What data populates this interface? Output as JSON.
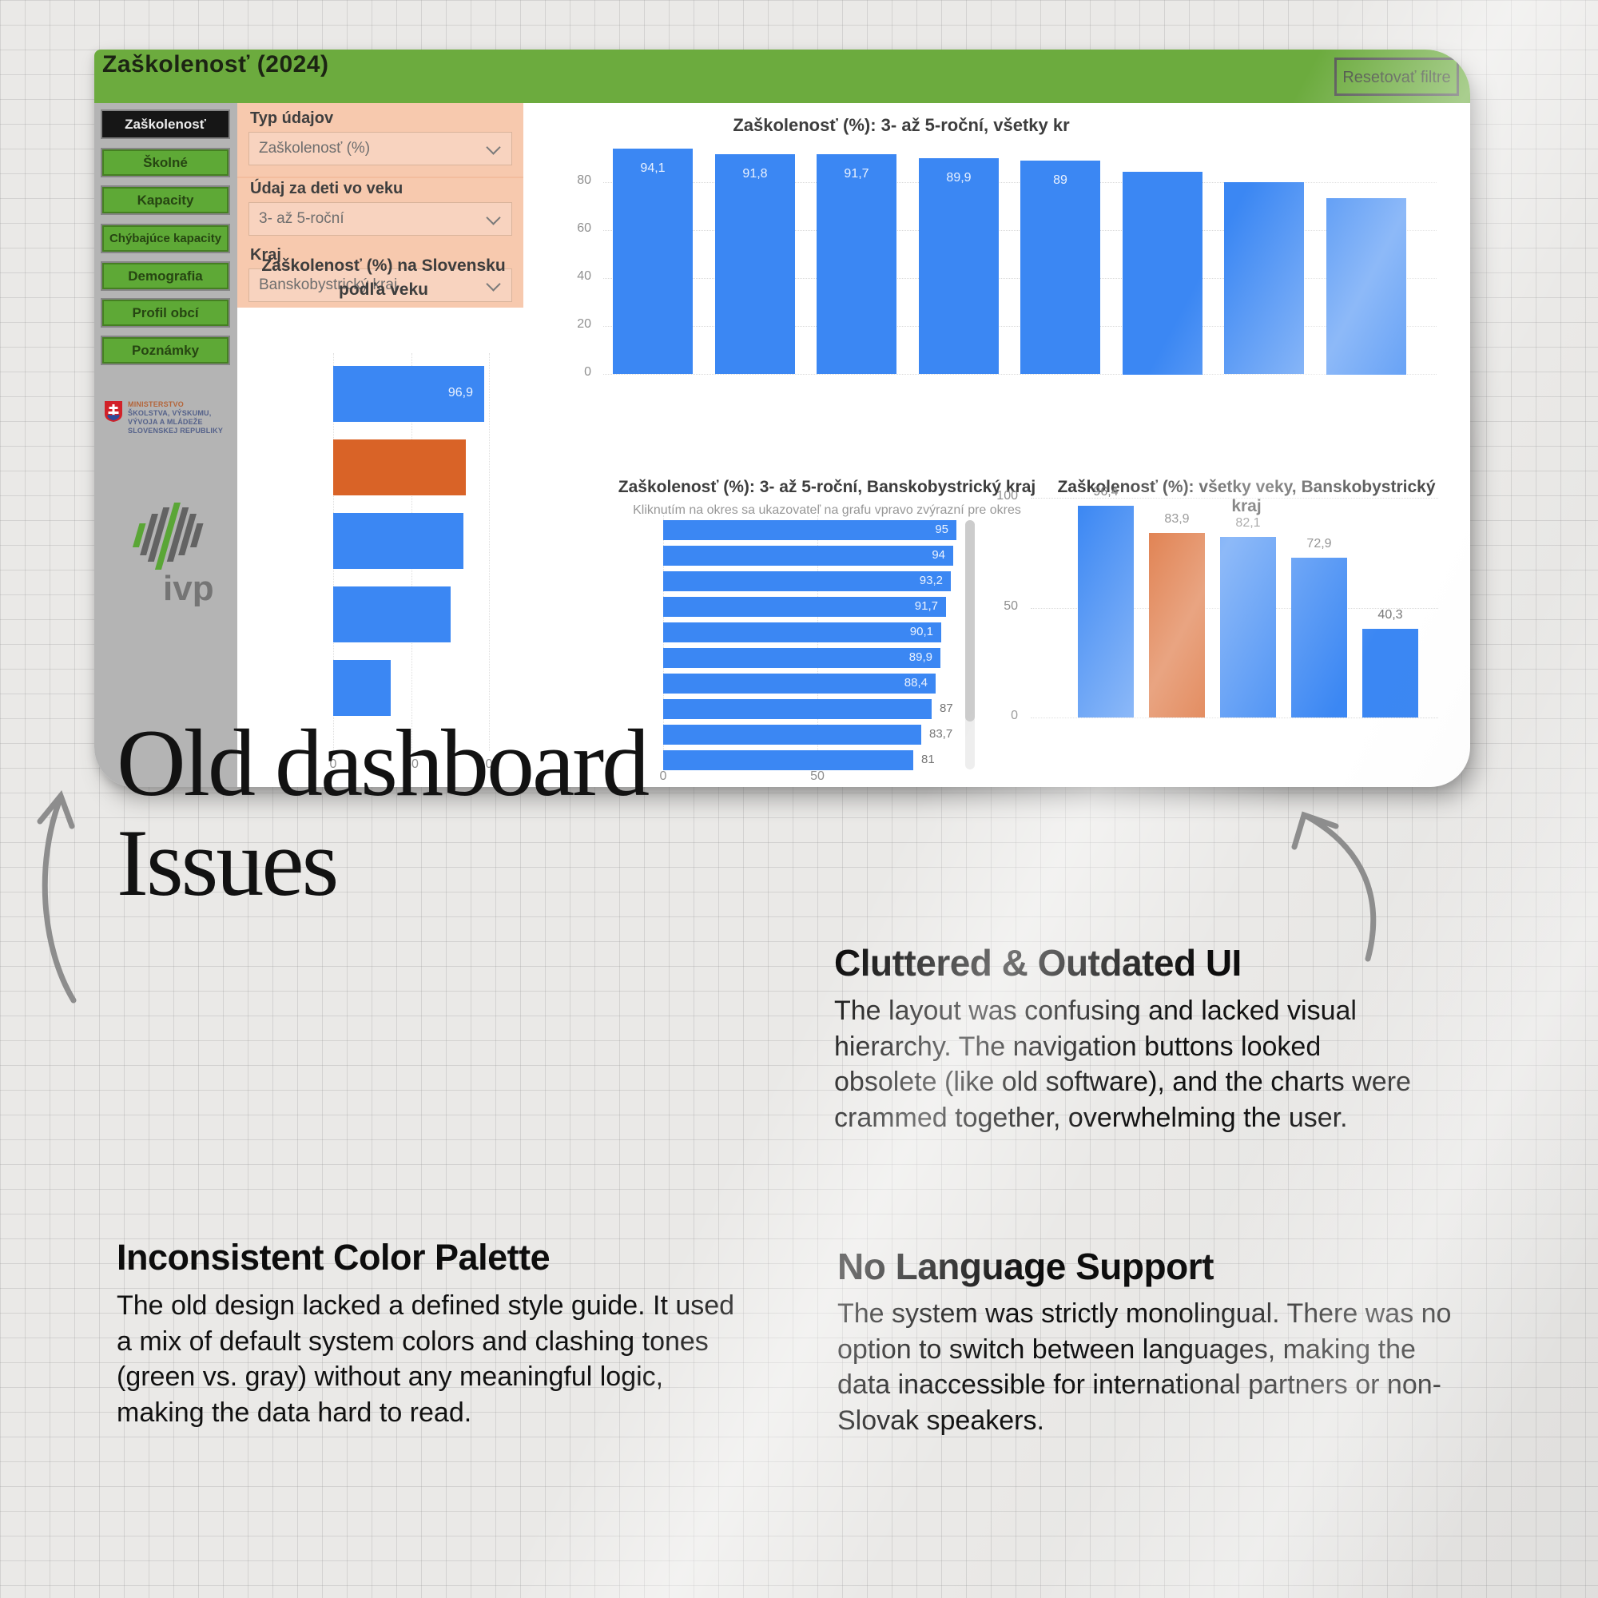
{
  "page": {
    "title_line1": "Old dashboard",
    "title_line2": "Issues",
    "sections": [
      {
        "heading": "Cluttered & Outdated UI",
        "body": "The layout was confusing and lacked visual hierarchy. The navigation buttons looked obsolete (like old software), and the charts were crammed together, overwhelming the user."
      },
      {
        "heading": "Inconsistent Color Palette",
        "body": "The old design lacked a defined style guide. It used a mix of default system colors and clashing tones (green vs. gray) without any meaningful logic, making the data hard to read."
      },
      {
        "heading": "No Language Support",
        "body": "The system was strictly monolingual. There was no option to switch between languages, making the data inaccessible for international partners or non-Slovak speakers."
      }
    ]
  },
  "dashboard": {
    "window_title": "Zaškolenosť (2024)",
    "reset_button_label": "Resetovať filtre",
    "sidebar": {
      "items": [
        {
          "label": "Zaškolenosť",
          "selected": true
        },
        {
          "label": "Školné",
          "selected": false
        },
        {
          "label": "Kapacity",
          "selected": false
        },
        {
          "label": "Chýbajúce kapacity",
          "selected": false
        },
        {
          "label": "Demografia",
          "selected": false
        },
        {
          "label": "Profil obcí",
          "selected": false
        },
        {
          "label": "Poznámky",
          "selected": false
        }
      ],
      "ministry_logo_lines": [
        "MINISTERSTVO",
        "ŠKOLSTVA, VÝSKUMU,",
        "VÝVOJA A MLÁDEŽE",
        "SLOVENSKEJ REPUBLIKY"
      ],
      "ivp_logo_label": "ivp"
    },
    "filters": [
      {
        "label": "Typ údajov",
        "value": "Zaškolenosť (%)"
      },
      {
        "label": "Údaj za deti vo veku",
        "value": "3- až 5-roční"
      },
      {
        "label": "Kraj",
        "value": "Banskobystrický kraj"
      }
    ],
    "colors": {
      "header_green": "#6cab3e",
      "nav_green": "#5ea936",
      "filter_salmon": "#f7c9ae",
      "sidebar_gray": "#b4b4b4",
      "bar_blue": "#3b87f3",
      "bar_orange": "#d96327"
    }
  },
  "chart_data": [
    {
      "type": "bar",
      "title": "Zaškolenosť (%): 3- až 5-roční, všetky kr",
      "values": [
        94.1,
        91.8,
        91.7,
        89.9,
        89,
        84.5,
        80.1,
        73.5
      ],
      "bar_labels": [
        "94,1",
        "91,8",
        "91,7",
        "89,9",
        "89",
        "",
        "",
        ""
      ],
      "yticks": [
        0,
        20,
        40,
        60,
        80
      ],
      "ylim": [
        0,
        100
      ],
      "grid": true,
      "legend": "none",
      "bar_color": "#3b87f3"
    },
    {
      "type": "bar-horizontal",
      "title": "Zaškolenosť (%) na Slovensku podľa veku",
      "values": [
        96.9,
        85,
        83.5,
        75.5,
        37
      ],
      "bar_labels": [
        "96,9",
        "",
        "",
        "",
        ""
      ],
      "bar_colors": [
        "#3b87f3",
        "#d96327",
        "#3b87f3",
        "#3b87f3",
        "#3b87f3"
      ],
      "xticks": [
        0,
        50,
        100
      ],
      "xlim": [
        0,
        130
      ],
      "grid": true,
      "legend": "none"
    },
    {
      "type": "bar-horizontal",
      "title": "Zaškolenosť (%): 3- až 5-roční, Banskobystrický kraj",
      "subtitle": "Kliknutím na okres sa ukazovateľ na grafu vpravo zvýrazní pre okres",
      "values": [
        95,
        94,
        93.2,
        91.7,
        90.1,
        89.9,
        88.4,
        87,
        83.7,
        81
      ],
      "bar_labels": [
        "95",
        "94",
        "93,2",
        "91,7",
        "90,1",
        "89,9",
        "88,4",
        "87",
        "83,7",
        "81"
      ],
      "labels_inside_count": 7,
      "xticks": [
        0,
        50
      ],
      "xlim": [
        0,
        100
      ],
      "grid": true,
      "legend": "none",
      "bar_color": "#3b87f3",
      "scrollbar": true
    },
    {
      "type": "bar",
      "title": "Zaškolenosť (%): všetky veky, Banskobystrický kraj",
      "values": [
        96.4,
        83.9,
        82.1,
        72.9,
        40.3
      ],
      "bar_labels": [
        "96,4",
        "83,9",
        "82,1",
        "72,9",
        "40,3"
      ],
      "bar_colors": [
        "#3b87f3",
        "#d96327",
        "#3b87f3",
        "#3b87f3",
        "#3b87f3"
      ],
      "yticks": [
        0,
        50,
        100
      ],
      "ylim": [
        0,
        100
      ],
      "grid": true,
      "legend": "none"
    }
  ]
}
